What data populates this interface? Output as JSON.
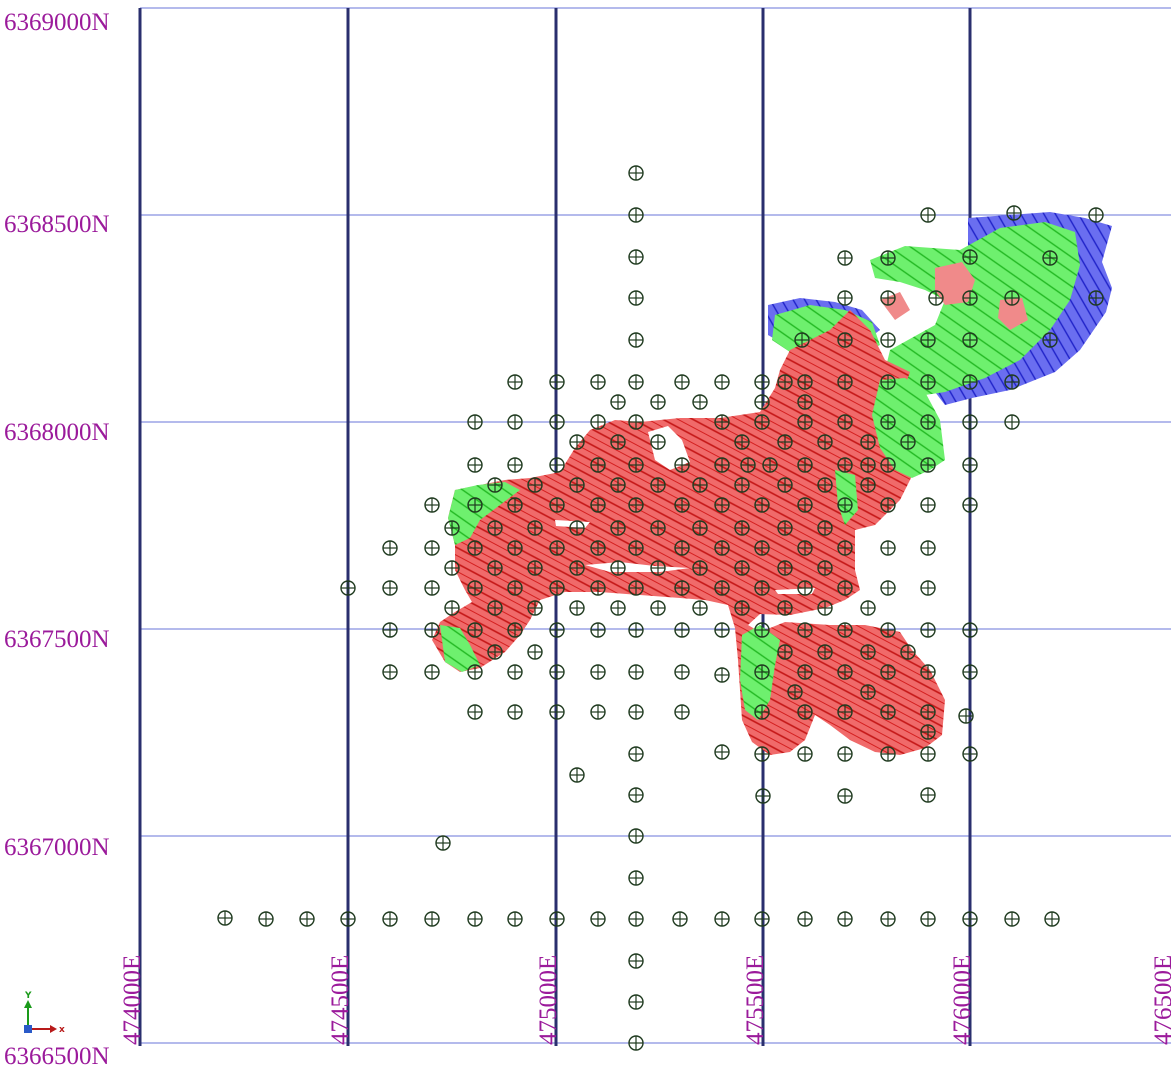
{
  "map": {
    "northing_labels": [
      "6369000N",
      "6368500N",
      "6368000N",
      "6367500N",
      "6367000N",
      "6366500N"
    ],
    "easting_labels": [
      "474000E",
      "474500E",
      "475000E",
      "475500E",
      "476000E",
      "476500E"
    ],
    "axis_triad": {
      "y": "Y",
      "x": "x"
    },
    "colors": {
      "label": "#9b1a9b",
      "grid_major": "#2a2f6e",
      "grid_minor": "#6a75d8",
      "zone_red": "#f06a6a",
      "zone_green": "#6ef06e",
      "zone_blue": "#6a6ef0",
      "drillhole_symbol": "#1f3a1f"
    }
  }
}
